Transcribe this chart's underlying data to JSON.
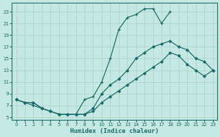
{
  "xlabel": "Humidex (Indice chaleur)",
  "bg_color": "#c5e8e2",
  "grid_color": "#b0d8d0",
  "line_color": "#1a6b6b",
  "xlim": [
    -0.5,
    23.5
  ],
  "ylim": [
    4.5,
    24.5
  ],
  "xticks": [
    0,
    1,
    2,
    3,
    4,
    5,
    6,
    7,
    8,
    9,
    10,
    11,
    12,
    13,
    14,
    15,
    16,
    17,
    18,
    19,
    20,
    21,
    22,
    23
  ],
  "yticks": [
    5,
    7,
    9,
    11,
    13,
    15,
    17,
    19,
    21,
    23
  ],
  "curve_high_x": [
    0,
    1,
    2,
    3,
    4,
    5,
    6,
    7,
    8,
    9,
    10,
    11,
    12,
    13,
    14,
    15,
    16,
    17,
    18
  ],
  "curve_high_y": [
    8.0,
    7.5,
    7.0,
    6.5,
    6.0,
    5.5,
    5.5,
    5.5,
    8.0,
    8.5,
    11.0,
    15.0,
    20.0,
    22.0,
    22.5,
    23.5,
    23.5,
    21.0,
    23.0
  ],
  "curve_mid_x": [
    0,
    1,
    2,
    3,
    4,
    5,
    6,
    7,
    8,
    9,
    10,
    11,
    12,
    13,
    14,
    15,
    16,
    17,
    18,
    19,
    20,
    21,
    22,
    23
  ],
  "curve_mid_y": [
    8.0,
    7.5,
    7.5,
    6.5,
    6.0,
    5.5,
    5.5,
    5.5,
    5.5,
    6.5,
    9.0,
    10.5,
    11.5,
    13.0,
    15.0,
    16.0,
    17.0,
    17.5,
    18.0,
    17.0,
    16.5,
    15.0,
    14.5,
    13.0
  ],
  "curve_low_x": [
    0,
    1,
    2,
    3,
    4,
    5,
    6,
    7,
    8,
    9,
    10,
    11,
    12,
    13,
    14,
    15,
    16,
    17,
    18,
    19,
    20,
    21,
    22,
    23
  ],
  "curve_low_y": [
    8.0,
    7.5,
    7.5,
    6.5,
    6.0,
    5.5,
    5.5,
    5.5,
    5.5,
    6.0,
    7.5,
    8.5,
    9.5,
    10.5,
    11.5,
    12.5,
    13.5,
    14.5,
    16.0,
    15.5,
    14.0,
    13.0,
    12.0,
    13.0
  ]
}
